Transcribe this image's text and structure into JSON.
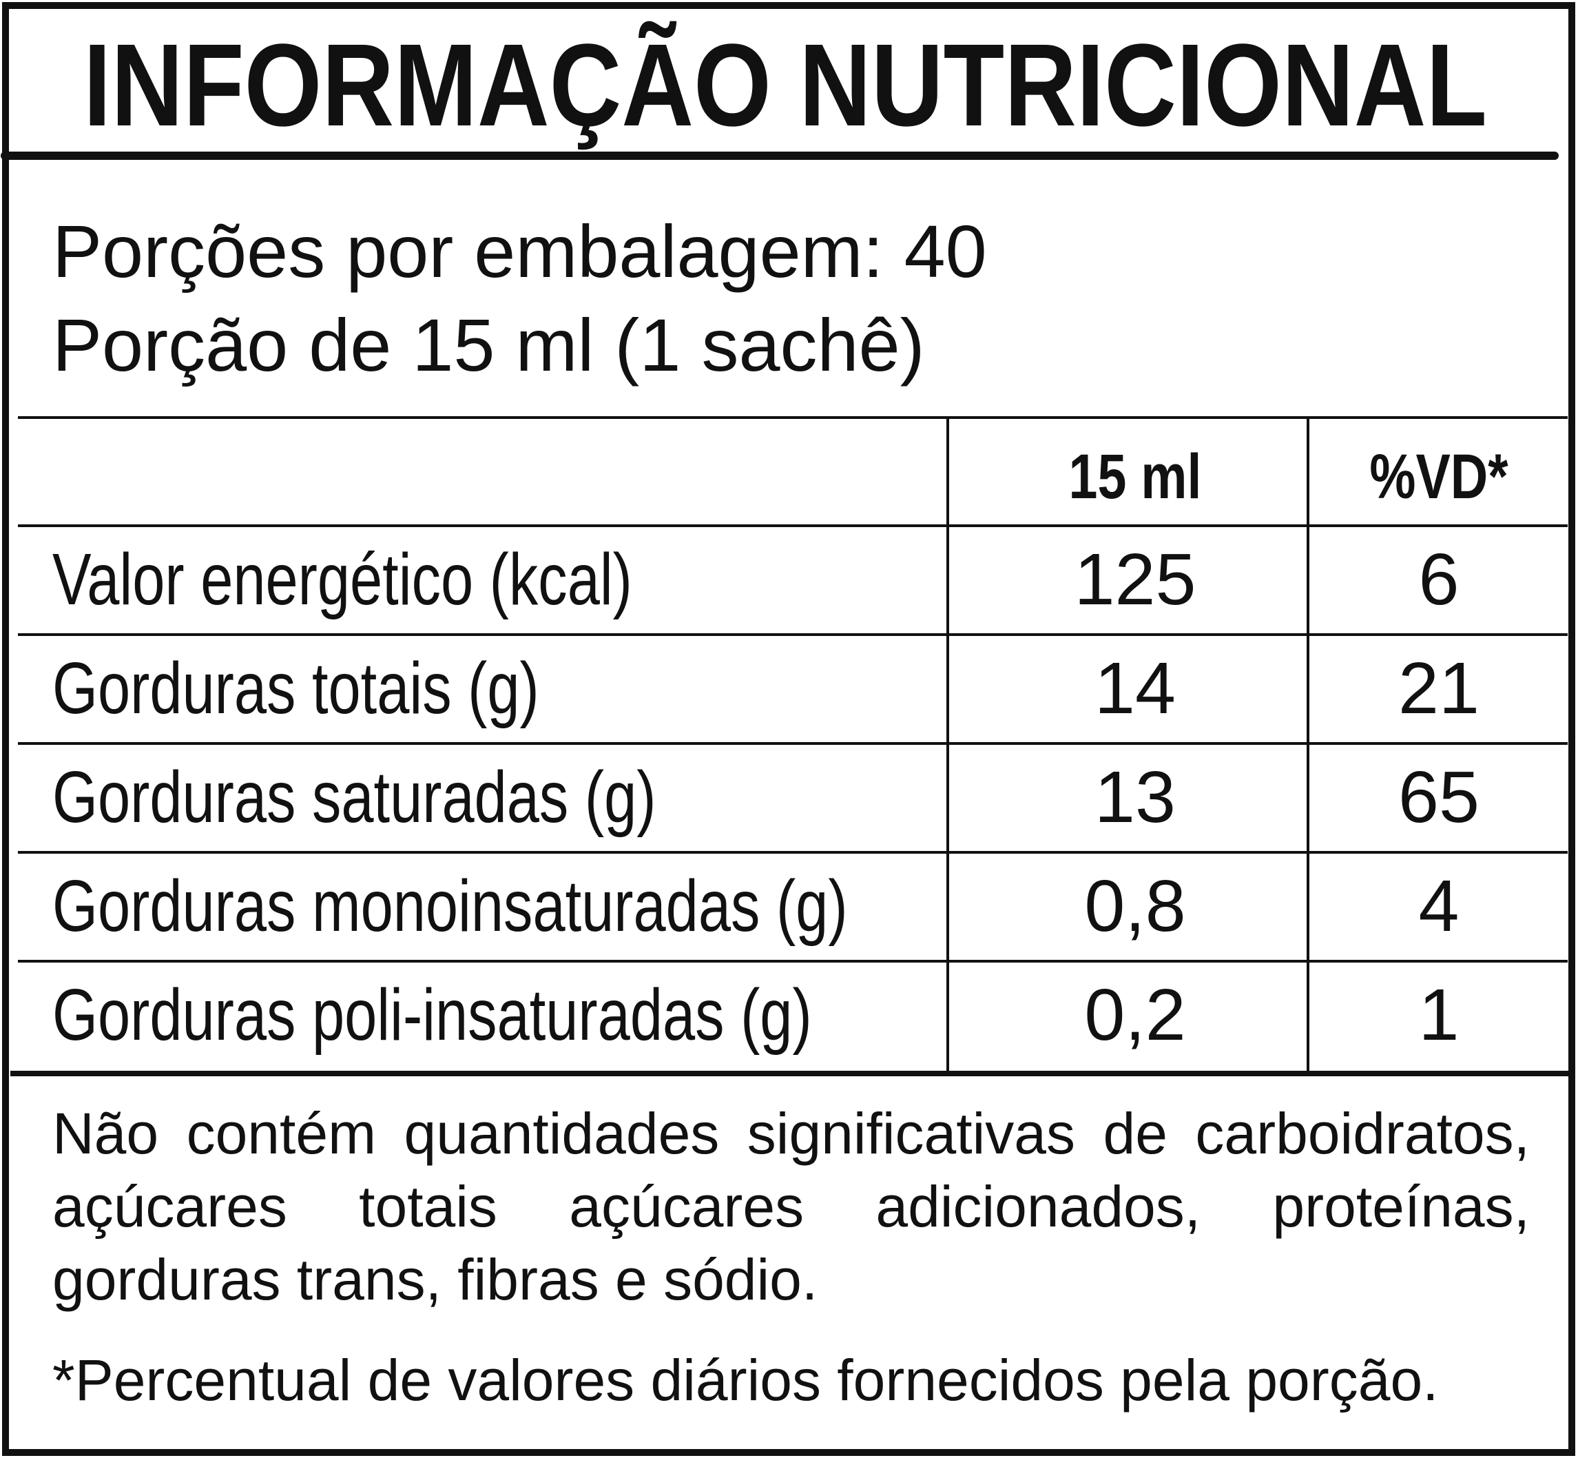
{
  "header": {
    "title": "INFORMAÇÃO NUTRICIONAL"
  },
  "servings": {
    "per_package": "Porções por embalagem: 40",
    "portion": "Porção de 15 ml (1 sachê)"
  },
  "table": {
    "columns": [
      "15 ml",
      "%VD*"
    ],
    "rows": [
      [
        "Valor energético (kcal)",
        "125",
        "6"
      ],
      [
        "Gorduras totais (g)",
        "14",
        "21"
      ],
      [
        "Gorduras saturadas (g)",
        "13",
        "65"
      ],
      [
        "Gorduras monoinsaturadas (g)",
        "0,8",
        "4"
      ],
      [
        "Gorduras poli-insaturadas (g)",
        "0,2",
        "1"
      ]
    ]
  },
  "footer": {
    "note": "Não contém quantidades significativas de carboidratos, açúcares totais açúcares adicionados, proteínas, gorduras trans, fibras e sódio.",
    "footnote": "*Percentual de valores diários fornecidos pela porção."
  }
}
